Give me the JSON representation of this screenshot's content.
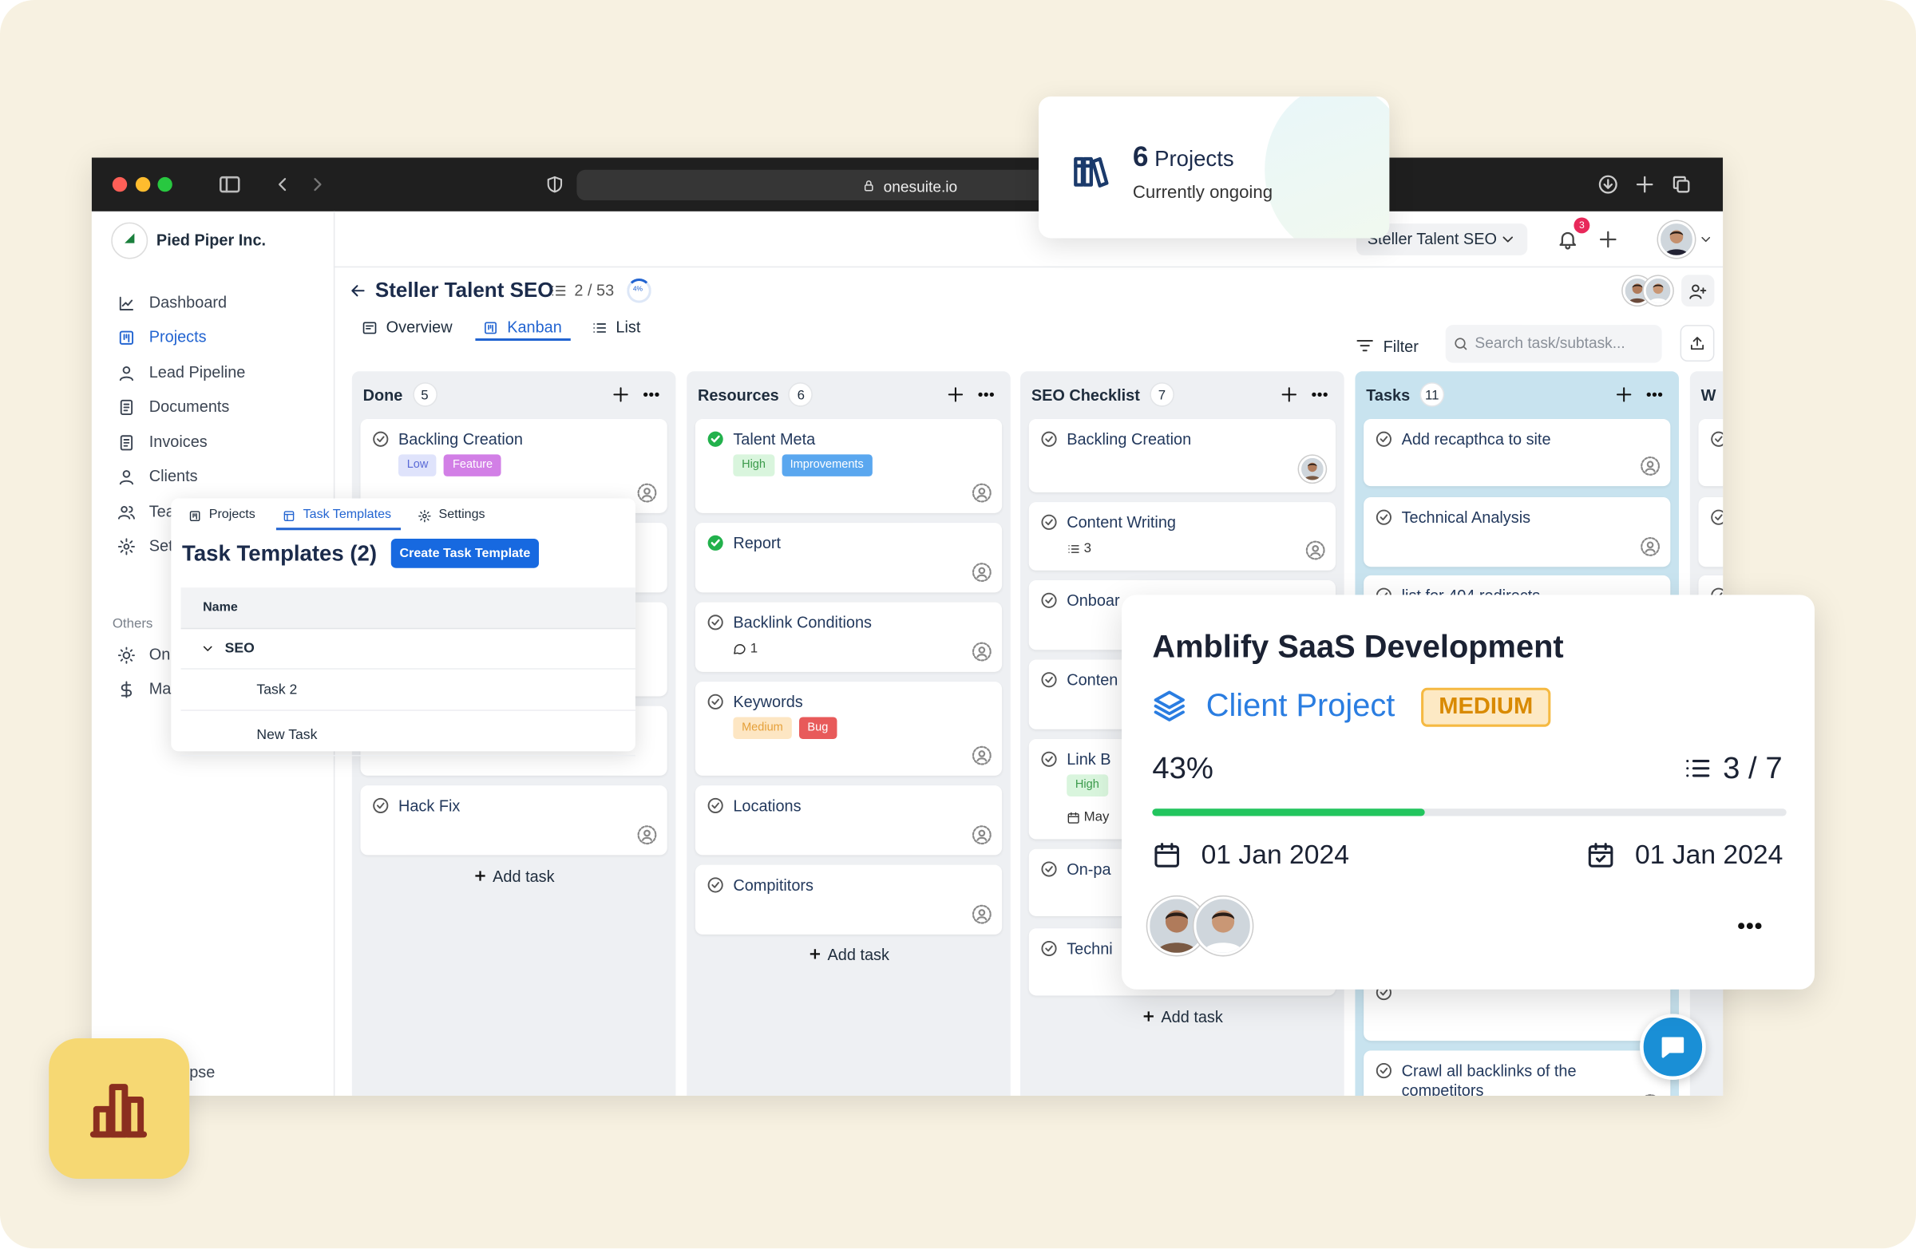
{
  "browser": {
    "url": "onesuite.io"
  },
  "sidebar": {
    "org": "Pied Piper Inc.",
    "nav": [
      "Dashboard",
      "Projects",
      "Lead Pipeline",
      "Documents",
      "Invoices",
      "Clients",
      "Tea",
      "Set"
    ],
    "active": 1,
    "others_label": "Others",
    "others": [
      "On",
      "Ma"
    ],
    "collapse": "pse"
  },
  "header": {
    "project_select": "Steller Talent SEO",
    "notifications": 3
  },
  "project": {
    "title": "Steller Talent SEO",
    "progress": "2 / 53",
    "percent": "4%",
    "tabs": [
      "Overview",
      "Kanban",
      "List"
    ],
    "active_tab": 1,
    "filter": "Filter",
    "search": "Search task/subtask..."
  },
  "board": {
    "add_task": "Add task",
    "columns": [
      {
        "name": "Done",
        "count": 5,
        "color": "#eef0f3",
        "cards": [
          {
            "title": "Backling Creation",
            "tags": [
              {
                "text": "Low",
                "bg": "#dfe3fb",
                "fg": "#5a6ad6"
              },
              {
                "text": "Feature",
                "bg": "#d27fe6",
                "fg": "#ffffff"
              }
            ]
          },
          {
            "title": "Hack Fix"
          }
        ]
      },
      {
        "name": "Resources",
        "count": 6,
        "color": "#eef0f3",
        "cards": [
          {
            "title": "Talent Meta",
            "done": true,
            "tags": [
              {
                "text": "High",
                "bg": "#d9f5dd",
                "fg": "#3a9a4a"
              },
              {
                "text": "Improvements",
                "bg": "#5aa7ef",
                "fg": "#ffffff"
              }
            ]
          },
          {
            "title": "Report",
            "done": true
          },
          {
            "title": "Backlink Conditions",
            "comments": 1
          },
          {
            "title": "Keywords",
            "tags": [
              {
                "text": "Medium",
                "bg": "#fde6c3",
                "fg": "#e5a03a"
              },
              {
                "text": "Bug",
                "bg": "#e85a5a",
                "fg": "#ffffff"
              }
            ]
          },
          {
            "title": "Locations"
          },
          {
            "title": "Compititors"
          }
        ]
      },
      {
        "name": "SEO Checklist",
        "count": 7,
        "color": "#eef0f3",
        "cards": [
          {
            "title": "Backling Creation",
            "avatar": true
          },
          {
            "title": "Content Writing",
            "subtasks": 3
          },
          {
            "title": "Onboar"
          },
          {
            "title": "Conten"
          },
          {
            "title": "Link B",
            "tags": [
              {
                "text": "High",
                "bg": "#d9f5dd",
                "fg": "#3a9a4a"
              }
            ],
            "date": "May"
          },
          {
            "title": "On-pa"
          },
          {
            "title": "Techni"
          }
        ]
      },
      {
        "name": "Tasks",
        "count": 11,
        "color": "#c8e3ef",
        "cards": [
          {
            "title": "Add recapthca to site"
          },
          {
            "title": "Technical Analysis"
          },
          {
            "title": "list for 404 redirects"
          },
          {
            "title": "Crawl all backlinks of the competitors"
          }
        ]
      },
      {
        "name": "W",
        "color": "#eef0f3",
        "cards": []
      }
    ]
  },
  "templates_popup": {
    "tabs": [
      "Projects",
      "Task Templates",
      "Settings"
    ],
    "active_tab": 1,
    "heading": "Task Templates (2)",
    "button": "Create Task Template",
    "column": "Name",
    "rows": [
      {
        "label": "SEO",
        "level": 0
      },
      {
        "label": "Task 2",
        "level": 1
      },
      {
        "label": "New Task",
        "level": 1
      }
    ]
  },
  "projects_card": {
    "count": 6,
    "label": "Projects",
    "subtitle": "Currently ongoing"
  },
  "project_card": {
    "title": "Amblify SaaS Development",
    "type": "Client Project",
    "priority": "MEDIUM",
    "progress": {
      "value": 43,
      "label": "43%"
    },
    "tasks": "3 / 7",
    "start": "01 Jan 2024",
    "end": "01 Jan 2024"
  }
}
